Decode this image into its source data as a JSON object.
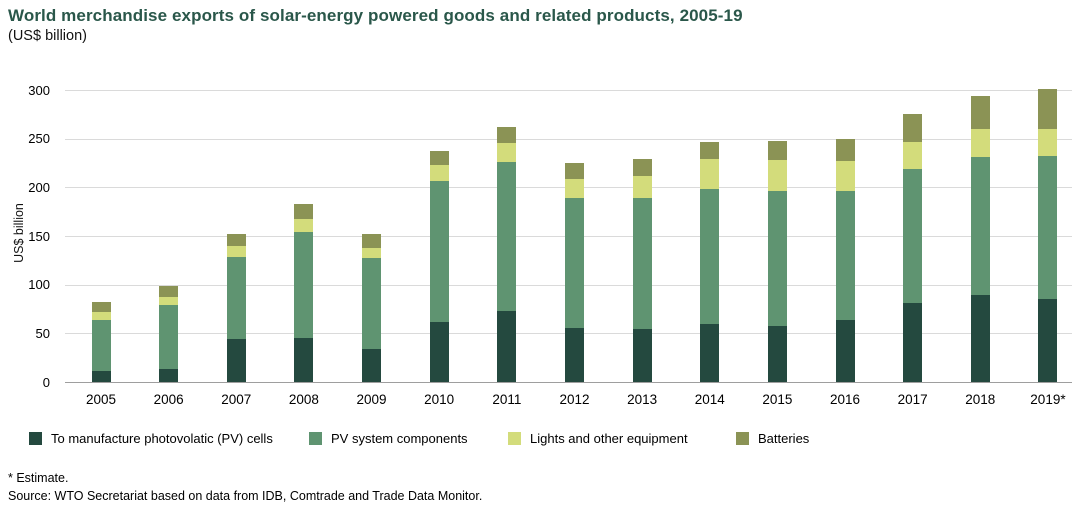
{
  "header": {
    "title": "World merchandise exports of solar-energy powered goods and related products, 2005-19",
    "subtitle": "(US$ billion)"
  },
  "chart_data": {
    "type": "bar",
    "stacked": true,
    "title": "World merchandise exports of solar-energy powered goods and related products, 2005-19",
    "ylabel": "US$ billion",
    "xlabel": "",
    "ylim": [
      0,
      300
    ],
    "yticks": [
      0,
      50,
      100,
      150,
      200,
      250,
      300
    ],
    "grid": true,
    "legend_position": "bottom",
    "categories": [
      "2005",
      "2006",
      "2007",
      "2008",
      "2009",
      "2010",
      "2011",
      "2012",
      "2013",
      "2014",
      "2015",
      "2016",
      "2017",
      "2018",
      "2019*"
    ],
    "series": [
      {
        "name": "To manufacture photovolatic (PV) cells",
        "color": "#24493f",
        "values": [
          11,
          13,
          44,
          45,
          34,
          62,
          73,
          55,
          54,
          60,
          58,
          64,
          81,
          89,
          85
        ]
      },
      {
        "name": "PV system components",
        "color": "#5f9471",
        "values": [
          53,
          66,
          84,
          109,
          93,
          145,
          153,
          134,
          135,
          138,
          138,
          132,
          138,
          142,
          147
        ]
      },
      {
        "name": "Lights and other equipment",
        "color": "#d3dc7b",
        "values": [
          8,
          8,
          12,
          14,
          11,
          16,
          20,
          20,
          23,
          31,
          32,
          31,
          28,
          29,
          28
        ]
      },
      {
        "name": "Batteries",
        "color": "#8b9355",
        "values": [
          10,
          12,
          12,
          15,
          14,
          14,
          16,
          16,
          17,
          18,
          20,
          23,
          28,
          34,
          41
        ]
      }
    ]
  },
  "footnotes": {
    "estimate": "* Estimate.",
    "source": "Source: WTO Secretariat based on data from IDB, Comtrade and Trade Data Monitor."
  },
  "colors": {
    "title": "#2a574a",
    "gridline": "#dadada",
    "zero_line": "#9e9e9e"
  }
}
